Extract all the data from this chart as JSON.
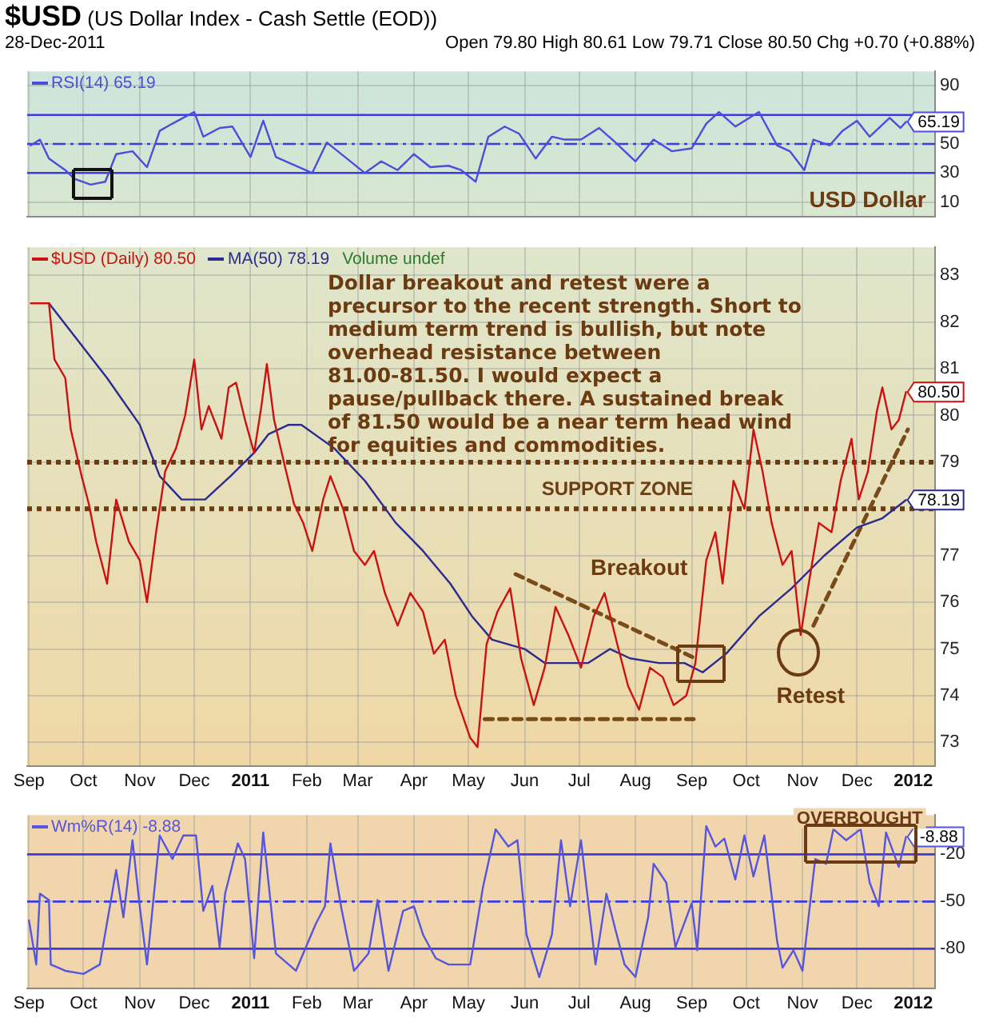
{
  "chart_data": [
    {
      "type": "line",
      "title": "$USD (US Dollar Index - Cash Settle (EOD))",
      "subtitle": "28-Dec-2011",
      "annotations": [
        "Open 79.80 High 80.61 Low 79.71 Close 80.50 Chg +0.70 (+0.88%)",
        "USD Dollar"
      ],
      "x": [
        "2010-09-02",
        "2010-09-07",
        "2010-09-12",
        "2010-09-21",
        "2010-09-26",
        "2010-10-05",
        "2010-10-13",
        "2010-10-19",
        "2010-10-28",
        "2010-11-05",
        "2010-11-12",
        "2010-11-19",
        "2010-12-01",
        "2010-12-06",
        "2010-12-15",
        "2010-12-22",
        "2011-01-01",
        "2011-01-08",
        "2011-01-15",
        "2011-01-24",
        "2011-02-04",
        "2011-02-12",
        "2011-02-23",
        "2011-03-05",
        "2011-03-14",
        "2011-03-23",
        "2011-04-01",
        "2011-04-10",
        "2011-04-20",
        "2011-04-27",
        "2011-05-05",
        "2011-05-12",
        "2011-05-21",
        "2011-05-29",
        "2011-06-07",
        "2011-06-16",
        "2011-06-23",
        "2011-07-02",
        "2011-07-12",
        "2011-07-21",
        "2011-08-01",
        "2011-08-11",
        "2011-08-21",
        "2011-09-01",
        "2011-09-09",
        "2011-09-16",
        "2011-09-25",
        "2011-10-08",
        "2011-10-18",
        "2011-10-25",
        "2011-11-02",
        "2011-11-07",
        "2011-11-16",
        "2011-11-23",
        "2011-12-01",
        "2011-12-08",
        "2011-12-19",
        "2011-12-25",
        "2011-12-28"
      ],
      "series": [
        {
          "name": "RSI(14) 65.19",
          "color": "#4d4ddb",
          "values": [
            49,
            53,
            40,
            32,
            26,
            22,
            24,
            43,
            45,
            34,
            59,
            64,
            72,
            55,
            61,
            62,
            41,
            66,
            41,
            36,
            30,
            51,
            40,
            30,
            38,
            32,
            43,
            34,
            35,
            32,
            24,
            55,
            62,
            57,
            40,
            55,
            53,
            53,
            61,
            51,
            38,
            53,
            45,
            47,
            64,
            72,
            62,
            72,
            49,
            45,
            32,
            53,
            49,
            59,
            66,
            55,
            68,
            61,
            65.19
          ],
          "value_labels": [
            null,
            null,
            null,
            null,
            null,
            null,
            null,
            null,
            null,
            null,
            null,
            null,
            null,
            null,
            null,
            null,
            null,
            null,
            null,
            null,
            null,
            null,
            null,
            null,
            null,
            null,
            null,
            null,
            null,
            null,
            null,
            null,
            null,
            null,
            null,
            null,
            null,
            null,
            null,
            null,
            null,
            null,
            null,
            null,
            null,
            null,
            null,
            null,
            null,
            null,
            null,
            null,
            null,
            null,
            null,
            null,
            null,
            null,
            "65.19"
          ]
        }
      ],
      "xlim": [
        "2010-08-31",
        "2012-01-13"
      ],
      "xticks": [
        {
          "value": "2010-09-01",
          "label": null
        },
        {
          "value": "2010-10-01",
          "label": null
        },
        {
          "value": "2010-11-01",
          "label": null
        },
        {
          "value": "2010-12-01",
          "label": null
        },
        {
          "value": "2011-01-01",
          "label": null
        },
        {
          "value": "2011-02-01",
          "label": null
        },
        {
          "value": "2011-03-01",
          "label": null
        },
        {
          "value": "2011-04-01",
          "label": null
        },
        {
          "value": "2011-05-01",
          "label": null
        },
        {
          "value": "2011-06-01",
          "label": null
        },
        {
          "value": "2011-07-01",
          "label": null
        },
        {
          "value": "2011-08-01",
          "label": null
        },
        {
          "value": "2011-09-01",
          "label": null
        },
        {
          "value": "2011-10-01",
          "label": null
        },
        {
          "value": "2011-11-01",
          "label": null
        },
        {
          "value": "2011-12-01",
          "label": null
        },
        {
          "value": "2012-01-01",
          "label": null
        }
      ],
      "ylim": [
        0,
        100
      ],
      "yticks": [
        10,
        30,
        50,
        90
      ],
      "ref_lines": [
        {
          "axis": "y",
          "value": 70,
          "color": "#3b3bdf",
          "line_style": "solid"
        },
        {
          "axis": "y",
          "value": 50,
          "color": "#3b3bdf",
          "line_style": "dashed"
        },
        {
          "axis": "y",
          "value": 30,
          "color": "#3b3bdf",
          "line_style": "solid"
        }
      ],
      "grid": true,
      "legend": "top left",
      "tick_labels": "y"
    },
    {
      "type": "line",
      "annotations": [
        "Dollar breakout and retest were a precursor to the recent strength. Short to medium term trend is bullish, but note overhead resistance between 81.00-81.50. I would expect a pause/pullback there. A sustained break of 81.50 would be a near term head wind for equities and commodities.",
        "Volume undef",
        "Breakout",
        "Retest"
      ],
      "series": [
        {
          "name": "$USD (Daily) 80.50",
          "color": "#cc1111",
          "x": [
            "2010-09-02",
            "2010-09-12",
            "2010-09-15",
            "2010-09-21",
            "2010-09-24",
            "2010-09-30",
            "2010-10-04",
            "2010-10-08",
            "2010-10-14",
            "2010-10-19",
            "2010-10-26",
            "2010-11-01",
            "2010-11-05",
            "2010-11-10",
            "2010-11-15",
            "2010-11-21",
            "2010-11-26",
            "2010-12-01",
            "2010-12-05",
            "2010-12-09",
            "2010-12-16",
            "2010-12-20",
            "2010-12-24",
            "2010-12-29",
            "2011-01-03",
            "2011-01-07",
            "2011-01-10",
            "2011-01-14",
            "2011-01-20",
            "2011-01-25",
            "2011-01-30",
            "2011-02-04",
            "2011-02-10",
            "2011-02-14",
            "2011-02-21",
            "2011-02-27",
            "2011-03-05",
            "2011-03-10",
            "2011-03-16",
            "2011-03-23",
            "2011-03-30",
            "2011-04-06",
            "2011-04-12",
            "2011-04-18",
            "2011-04-24",
            "2011-05-02",
            "2011-05-06",
            "2011-05-11",
            "2011-05-17",
            "2011-05-24",
            "2011-05-30",
            "2011-06-06",
            "2011-06-12",
            "2011-06-18",
            "2011-06-25",
            "2011-07-02",
            "2011-07-09",
            "2011-07-15",
            "2011-07-22",
            "2011-07-28",
            "2011-08-03",
            "2011-08-09",
            "2011-08-16",
            "2011-08-22",
            "2011-08-29",
            "2011-09-03",
            "2011-09-09",
            "2011-09-14",
            "2011-09-18",
            "2011-09-24",
            "2011-09-30",
            "2011-10-05",
            "2011-10-10",
            "2011-10-15",
            "2011-10-21",
            "2011-10-26",
            "2011-10-31",
            "2011-11-04",
            "2011-11-10",
            "2011-11-17",
            "2011-11-22",
            "2011-11-28",
            "2011-12-02",
            "2011-12-07",
            "2011-12-12",
            "2011-12-15",
            "2011-12-20",
            "2011-12-24",
            "2011-12-28"
          ],
          "values": [
            82.4,
            82.4,
            81.2,
            80.8,
            79.7,
            78.7,
            78.1,
            77.3,
            76.4,
            78.2,
            77.3,
            76.9,
            76.0,
            77.5,
            78.8,
            79.3,
            80.0,
            81.2,
            79.7,
            80.2,
            79.5,
            80.6,
            80.7,
            79.9,
            79.2,
            80.2,
            81.1,
            79.9,
            78.9,
            78.1,
            77.7,
            77.1,
            78.2,
            78.7,
            78.0,
            77.1,
            76.8,
            77.1,
            76.2,
            75.5,
            76.2,
            75.8,
            74.9,
            75.2,
            74.0,
            73.1,
            72.9,
            75.1,
            75.8,
            76.3,
            74.8,
            73.8,
            74.6,
            75.9,
            75.3,
            74.6,
            75.7,
            76.2,
            75.1,
            74.2,
            73.7,
            74.6,
            74.4,
            73.8,
            74.0,
            74.7,
            76.9,
            77.5,
            76.4,
            78.6,
            78.0,
            79.7,
            78.8,
            77.7,
            76.8,
            77.1,
            75.3,
            76.3,
            77.7,
            77.5,
            78.6,
            79.5,
            78.2,
            78.8,
            80.1,
            80.6,
            79.7,
            79.9,
            80.5
          ],
          "value_labels": [
            null,
            null,
            null,
            null,
            null,
            null,
            null,
            null,
            null,
            null,
            null,
            null,
            null,
            null,
            null,
            null,
            null,
            null,
            null,
            null,
            null,
            null,
            null,
            null,
            null,
            null,
            null,
            null,
            null,
            null,
            null,
            null,
            null,
            null,
            null,
            null,
            null,
            null,
            null,
            null,
            null,
            null,
            null,
            null,
            null,
            null,
            null,
            null,
            null,
            null,
            null,
            null,
            null,
            null,
            null,
            null,
            null,
            null,
            null,
            null,
            null,
            null,
            null,
            null,
            null,
            null,
            null,
            null,
            null,
            null,
            null,
            null,
            null,
            null,
            null,
            null,
            null,
            null,
            null,
            null,
            null,
            null,
            null,
            null,
            null,
            null,
            null,
            null,
            "80.50"
          ]
        },
        {
          "name": "MA(50) 78.19",
          "color": "#2b2b8f",
          "x": [
            "2010-09-12",
            "2010-10-14",
            "2010-11-01",
            "2010-11-12",
            "2010-11-24",
            "2010-12-07",
            "2010-12-21",
            "2011-01-03",
            "2011-01-11",
            "2011-01-22",
            "2011-01-29",
            "2011-02-16",
            "2011-03-05",
            "2011-03-22",
            "2011-04-06",
            "2011-04-21",
            "2011-05-03",
            "2011-05-14",
            "2011-06-01",
            "2011-06-12",
            "2011-07-06",
            "2011-07-18",
            "2011-07-29",
            "2011-08-14",
            "2011-08-28",
            "2011-09-07",
            "2011-09-20",
            "2011-10-08",
            "2011-10-26",
            "2011-11-13",
            "2011-12-01",
            "2011-12-15",
            "2011-12-28"
          ],
          "values": [
            82.4,
            80.8,
            79.8,
            78.7,
            78.2,
            78.2,
            78.7,
            79.2,
            79.6,
            79.8,
            79.8,
            79.3,
            78.6,
            77.7,
            77.1,
            76.4,
            75.7,
            75.2,
            75.0,
            74.7,
            74.7,
            75.0,
            74.8,
            74.7,
            74.7,
            74.5,
            74.9,
            75.7,
            76.3,
            77.0,
            77.6,
            77.8,
            78.19
          ],
          "value_labels": [
            null,
            null,
            null,
            null,
            null,
            null,
            null,
            null,
            null,
            null,
            null,
            null,
            null,
            null,
            null,
            null,
            null,
            null,
            null,
            null,
            null,
            null,
            null,
            null,
            null,
            null,
            null,
            null,
            null,
            null,
            null,
            null,
            "78.19"
          ]
        },
        {
          "color": "#7a4a1a",
          "line_style": "dashed",
          "x": [
            "2011-05-27",
            "2011-09-03"
          ],
          "values": [
            76.6,
            74.8
          ]
        },
        {
          "color": "#7a4a1a",
          "line_style": "dashed",
          "x": [
            "2011-05-10",
            "2011-09-02"
          ],
          "values": [
            73.5,
            73.5
          ]
        },
        {
          "color": "#7a4a1a",
          "line_style": "dashed",
          "x": [
            "2011-11-07",
            "2011-12-29"
          ],
          "values": [
            75.5,
            79.7
          ]
        }
      ],
      "xlim": [
        "2010-08-31",
        "2012-01-13"
      ],
      "xticks": [
        {
          "value": "2010-09-01",
          "label": "Sep"
        },
        {
          "value": "2010-10-01",
          "label": "Oct"
        },
        {
          "value": "2010-11-01",
          "label": "Nov"
        },
        {
          "value": "2010-12-01",
          "label": "Dec"
        },
        {
          "value": "2011-01-01",
          "label": "2011"
        },
        {
          "value": "2011-02-01",
          "label": "Feb"
        },
        {
          "value": "2011-03-01",
          "label": "Mar"
        },
        {
          "value": "2011-04-01",
          "label": "Apr"
        },
        {
          "value": "2011-05-01",
          "label": "May"
        },
        {
          "value": "2011-06-01",
          "label": "Jun"
        },
        {
          "value": "2011-07-01",
          "label": "Jul"
        },
        {
          "value": "2011-08-01",
          "label": "Aug"
        },
        {
          "value": "2011-09-01",
          "label": "Sep"
        },
        {
          "value": "2011-10-01",
          "label": "Oct"
        },
        {
          "value": "2011-11-01",
          "label": "Nov"
        },
        {
          "value": "2011-12-01",
          "label": "Dec"
        },
        {
          "value": "2012-01-01",
          "label": "2012"
        }
      ],
      "ylim": [
        72.5,
        83.6
      ],
      "yticks": [
        73,
        74,
        75,
        76,
        77,
        79,
        80,
        81,
        82,
        83
      ],
      "ref_lines": [
        {
          "axis": "y",
          "value": 79,
          "color": "#6b3d12",
          "line_style": "dotted"
        },
        {
          "axis": "y",
          "value": 78,
          "color": "#6b3d12",
          "line_style": "dotted",
          "label": "SUPPORT ZONE"
        }
      ],
      "grid": true,
      "legend": "top left"
    },
    {
      "type": "line",
      "annotations": [
        "OVERBOUGHT"
      ],
      "series": [
        {
          "name": "Wm%R(14) -8.88",
          "color": "#5555dd",
          "x": [
            "2010-09-01",
            "2010-09-05",
            "2010-09-07",
            "2010-09-12",
            "2010-09-13",
            "2010-09-21",
            "2010-10-01",
            "2010-10-10",
            "2010-10-19",
            "2010-10-23",
            "2010-10-28",
            "2010-11-01",
            "2010-11-05",
            "2010-11-12",
            "2010-11-19",
            "2010-11-25",
            "2010-12-02",
            "2010-12-06",
            "2010-12-11",
            "2010-12-15",
            "2010-12-18",
            "2010-12-25",
            "2010-12-29",
            "2011-01-03",
            "2011-01-08",
            "2011-01-15",
            "2011-01-26",
            "2011-02-06",
            "2011-02-11",
            "2011-02-14",
            "2011-02-20",
            "2011-02-27",
            "2011-03-07",
            "2011-03-12",
            "2011-03-18",
            "2011-03-26",
            "2011-04-01",
            "2011-04-06",
            "2011-04-13",
            "2011-04-20",
            "2011-05-02",
            "2011-05-09",
            "2011-05-16",
            "2011-05-23",
            "2011-05-28",
            "2011-06-02",
            "2011-06-09",
            "2011-06-16",
            "2011-06-21",
            "2011-06-26",
            "2011-07-02",
            "2011-07-10",
            "2011-07-16",
            "2011-07-21",
            "2011-07-26",
            "2011-08-01",
            "2011-08-08",
            "2011-08-11",
            "2011-08-18",
            "2011-08-23",
            "2011-09-01",
            "2011-09-04",
            "2011-09-09",
            "2011-09-14",
            "2011-09-19",
            "2011-09-25",
            "2011-09-30",
            "2011-10-05",
            "2011-10-11",
            "2011-10-18",
            "2011-10-21",
            "2011-10-27",
            "2011-11-01",
            "2011-11-05",
            "2011-11-08",
            "2011-11-14",
            "2011-11-18",
            "2011-11-25",
            "2011-12-03",
            "2011-12-08",
            "2011-12-13",
            "2011-12-17",
            "2011-12-24",
            "2011-12-28"
          ],
          "values": [
            -62,
            -90,
            -45,
            -49,
            -90,
            -94,
            -96,
            -90,
            -30,
            -60,
            -11,
            -53,
            -90,
            -8,
            -23,
            -8,
            -8,
            -56,
            -40,
            -79,
            -45,
            -13,
            -23,
            -86,
            -6,
            -83,
            -94,
            -64,
            -53,
            -13,
            -54,
            -94,
            -83,
            -49,
            -94,
            -56,
            -53,
            -71,
            -86,
            -90,
            -90,
            -41,
            -4,
            -15,
            -11,
            -71,
            -98,
            -71,
            -11,
            -53,
            -11,
            -90,
            -45,
            -68,
            -90,
            -98,
            -60,
            -26,
            -38,
            -79,
            -51,
            -81,
            -2,
            -15,
            -10,
            -36,
            -8,
            -34,
            -8,
            -75,
            -92,
            -81,
            -94,
            -53,
            -23,
            -26,
            -4,
            -11,
            -4,
            -38,
            -53,
            -6,
            -28,
            -8.88
          ],
          "value_labels": [
            null,
            null,
            null,
            null,
            null,
            null,
            null,
            null,
            null,
            null,
            null,
            null,
            null,
            null,
            null,
            null,
            null,
            null,
            null,
            null,
            null,
            null,
            null,
            null,
            null,
            null,
            null,
            null,
            null,
            null,
            null,
            null,
            null,
            null,
            null,
            null,
            null,
            null,
            null,
            null,
            null,
            null,
            null,
            null,
            null,
            null,
            null,
            null,
            null,
            null,
            null,
            null,
            null,
            null,
            null,
            null,
            null,
            null,
            null,
            null,
            null,
            null,
            null,
            null,
            null,
            null,
            null,
            null,
            null,
            null,
            null,
            null,
            null,
            null,
            null,
            null,
            null,
            null,
            null,
            null,
            null,
            null,
            null,
            "-8.88"
          ]
        }
      ],
      "xlim": [
        "2010-08-31",
        "2012-01-13"
      ],
      "xticks": [
        {
          "value": "2010-09-01",
          "label": "Sep"
        },
        {
          "value": "2010-10-01",
          "label": "Oct"
        },
        {
          "value": "2010-11-01",
          "label": "Nov"
        },
        {
          "value": "2010-12-01",
          "label": "Dec"
        },
        {
          "value": "2011-01-01",
          "label": "2011"
        },
        {
          "value": "2011-02-01",
          "label": "Feb"
        },
        {
          "value": "2011-03-01",
          "label": "Mar"
        },
        {
          "value": "2011-04-01",
          "label": "Apr"
        },
        {
          "value": "2011-05-01",
          "label": "May"
        },
        {
          "value": "2011-06-01",
          "label": "Jun"
        },
        {
          "value": "2011-07-01",
          "label": "Jul"
        },
        {
          "value": "2011-08-01",
          "label": "Aug"
        },
        {
          "value": "2011-09-01",
          "label": "Sep"
        },
        {
          "value": "2011-10-01",
          "label": "Oct"
        },
        {
          "value": "2011-11-01",
          "label": "Nov"
        },
        {
          "value": "2011-12-01",
          "label": "Dec"
        },
        {
          "value": "2012-01-01",
          "label": "2012"
        }
      ],
      "ylim": [
        -105,
        5
      ],
      "yticks": [
        -20,
        -50,
        -80
      ],
      "ref_lines": [
        {
          "axis": "y",
          "value": -20,
          "color": "#3b3bdf",
          "line_style": "solid"
        },
        {
          "axis": "y",
          "value": -50,
          "color": "#3b3bdf",
          "line_style": "dashed"
        },
        {
          "axis": "y",
          "value": -80,
          "color": "#3b3bdf",
          "line_style": "solid"
        }
      ],
      "grid": true,
      "legend": "top left"
    }
  ]
}
